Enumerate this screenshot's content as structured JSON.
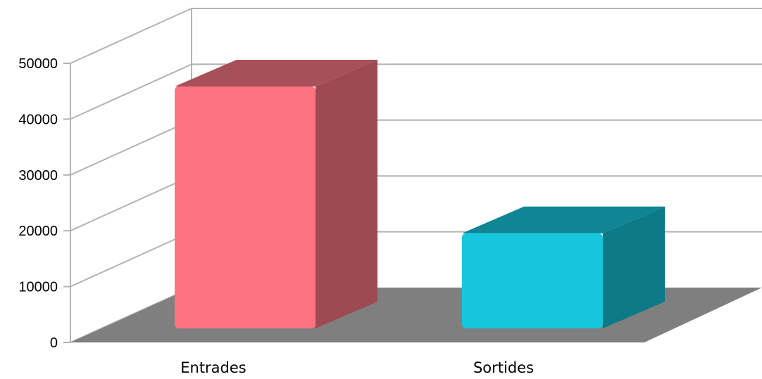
{
  "chart_data": {
    "type": "bar",
    "style": "3d-column",
    "categories": [
      "Entrades",
      "Sortides"
    ],
    "values": [
      44500,
      17500
    ],
    "colors": [
      "#ff7380",
      "#16c6dc"
    ],
    "side_colors": [
      "#9e4a52",
      "#0d7a88"
    ],
    "top_colors": [
      "#a8505a",
      "#0f8595"
    ],
    "ylim": [
      0,
      50000
    ],
    "yticks": [
      0,
      10000,
      20000,
      30000,
      40000,
      50000
    ],
    "ytick_labels": [
      "0",
      "10000",
      "20000",
      "30000",
      "40000",
      "50000"
    ],
    "grid": true,
    "legend": "none",
    "floor_color": "#7f7f7f",
    "grid_color": "#b3b3b3"
  }
}
